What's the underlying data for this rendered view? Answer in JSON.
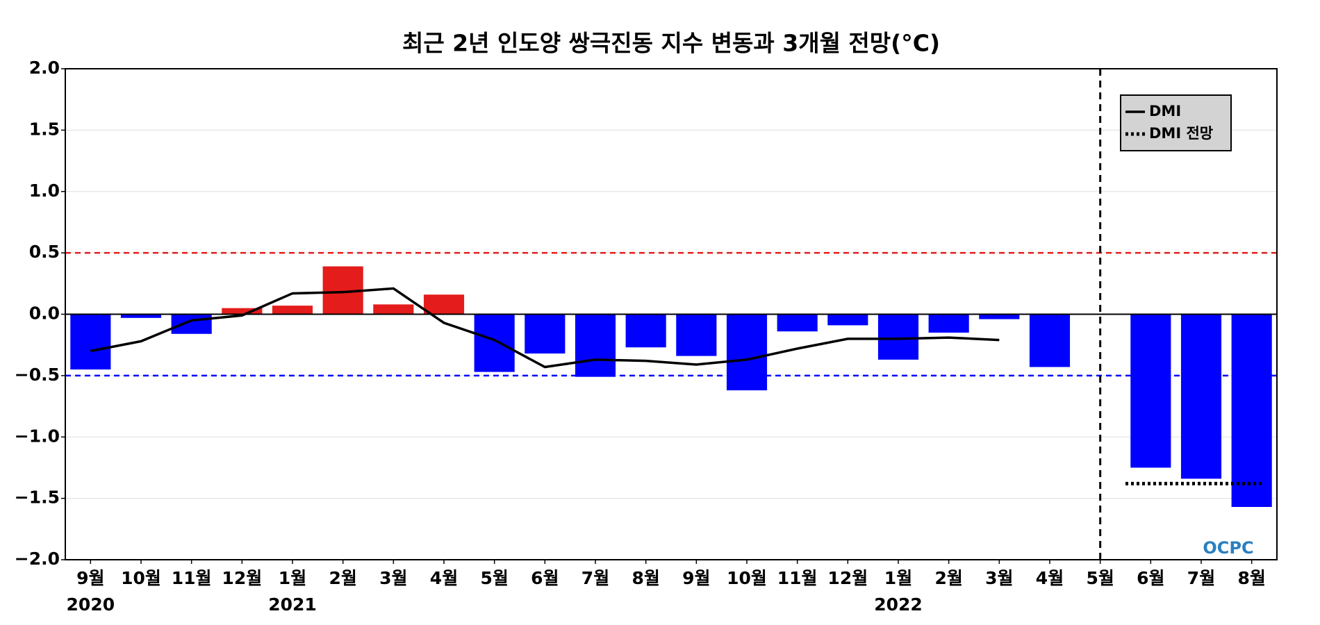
{
  "chart_data": {
    "type": "bar",
    "title": "최근 2년 인도양 쌍극진동 지수 변동과 3개월 전망(°C)",
    "categories": [
      "9월",
      "10월",
      "11월",
      "12월",
      "1월",
      "2월",
      "3월",
      "4월",
      "5월",
      "6월",
      "7월",
      "8월",
      "9월",
      "10월",
      "11월",
      "12월",
      "1월",
      "2월",
      "3월",
      "4월",
      "5월",
      "6월",
      "7월",
      "8월"
    ],
    "year_labels": [
      {
        "index": 0,
        "label": "2020"
      },
      {
        "index": 4,
        "label": "2021"
      },
      {
        "index": 16,
        "label": "2022"
      }
    ],
    "values": [
      -0.45,
      -0.03,
      -0.16,
      0.05,
      0.07,
      0.39,
      0.08,
      0.16,
      -0.47,
      -0.32,
      -0.51,
      -0.27,
      -0.34,
      -0.62,
      -0.14,
      -0.09,
      -0.37,
      -0.15,
      -0.04,
      -0.43,
      null,
      -1.25,
      -1.34,
      -1.57
    ],
    "positive_color": "#e41c1c",
    "negative_color": "#0000ff",
    "series": [
      {
        "name": "DMI",
        "color": "#000000",
        "style": "solid",
        "values": [
          -0.3,
          -0.22,
          -0.05,
          -0.01,
          0.17,
          0.18,
          0.21,
          -0.07,
          -0.21,
          -0.43,
          -0.37,
          -0.38,
          -0.41,
          -0.37,
          -0.28,
          -0.2,
          -0.2,
          -0.19,
          -0.21,
          null,
          null,
          null,
          null,
          null
        ]
      },
      {
        "name": "DMI 전망",
        "color": "#000000",
        "style": "dotted",
        "values": [
          null,
          null,
          null,
          null,
          null,
          null,
          null,
          null,
          null,
          null,
          null,
          null,
          null,
          null,
          null,
          null,
          null,
          null,
          null,
          null,
          null,
          -1.38,
          -1.38,
          -1.38
        ]
      }
    ],
    "reference_lines": [
      {
        "value": 0.5,
        "color": "#e41c1c"
      },
      {
        "value": -0.5,
        "color": "#0000ff"
      }
    ],
    "forecast_start": 20,
    "ylim": [
      -2.0,
      2.0
    ],
    "yticks": [
      {
        "value": -2.0,
        "label": "−2.0"
      },
      {
        "value": -1.5,
        "label": "−1.5"
      },
      {
        "value": -1.0,
        "label": "−1.0"
      },
      {
        "value": -0.5,
        "label": "−0.5"
      },
      {
        "value": 0.0,
        "label": "0.0"
      },
      0.5,
      {
        "value": 1.0,
        "label": "1.0"
      },
      1.5,
      {
        "value": 2.0,
        "label": "2.0"
      }
    ],
    "grid": true,
    "legend": "upper right",
    "logo": "OCPC"
  }
}
